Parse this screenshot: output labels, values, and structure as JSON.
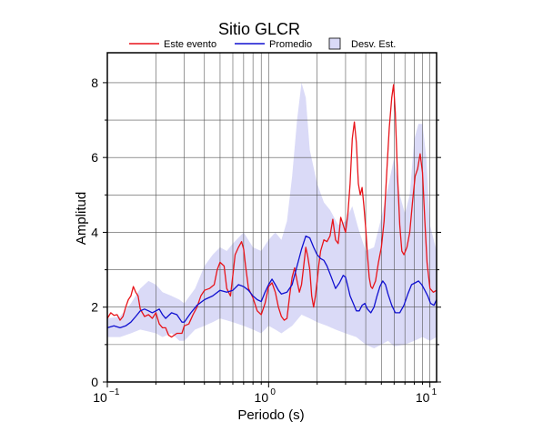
{
  "chart_data": {
    "type": "line",
    "title": "Sitio GLCR",
    "xlabel": "Periodo (s)",
    "ylabel": "Amplitud",
    "x_scale": "log",
    "xlim": [
      0.1,
      11
    ],
    "ylim": [
      0,
      8.8
    ],
    "x_ticks": [
      0.1,
      1,
      10
    ],
    "x_tick_labels": [
      {
        "base": "10",
        "exp": "−1"
      },
      {
        "base": "10",
        "exp": "0"
      },
      {
        "base": "10",
        "exp": "1"
      }
    ],
    "y_ticks": [
      0,
      2,
      4,
      6,
      8
    ],
    "y_tick_labels": [
      "0",
      "2",
      "4",
      "6",
      "8"
    ],
    "grid": true,
    "legend_position": "top",
    "legend": [
      "Este evento",
      "Promedio",
      "Desv. Est."
    ],
    "series": [
      {
        "name": "Este evento",
        "color": "#e8141a",
        "points": [
          [
            0.1,
            1.7
          ],
          [
            0.105,
            1.85
          ],
          [
            0.11,
            1.78
          ],
          [
            0.115,
            1.8
          ],
          [
            0.12,
            1.65
          ],
          [
            0.125,
            1.75
          ],
          [
            0.13,
            2.0
          ],
          [
            0.135,
            2.2
          ],
          [
            0.14,
            2.3
          ],
          [
            0.145,
            2.55
          ],
          [
            0.15,
            2.4
          ],
          [
            0.155,
            2.3
          ],
          [
            0.16,
            1.95
          ],
          [
            0.17,
            1.75
          ],
          [
            0.18,
            1.8
          ],
          [
            0.19,
            1.7
          ],
          [
            0.2,
            1.85
          ],
          [
            0.21,
            1.55
          ],
          [
            0.22,
            1.45
          ],
          [
            0.23,
            1.45
          ],
          [
            0.24,
            1.25
          ],
          [
            0.25,
            1.2
          ],
          [
            0.27,
            1.3
          ],
          [
            0.29,
            1.3
          ],
          [
            0.3,
            1.5
          ],
          [
            0.32,
            1.55
          ],
          [
            0.34,
            1.8
          ],
          [
            0.36,
            2.0
          ],
          [
            0.38,
            2.3
          ],
          [
            0.4,
            2.45
          ],
          [
            0.43,
            2.5
          ],
          [
            0.46,
            2.6
          ],
          [
            0.48,
            3.0
          ],
          [
            0.5,
            3.2
          ],
          [
            0.53,
            3.1
          ],
          [
            0.55,
            2.5
          ],
          [
            0.58,
            2.3
          ],
          [
            0.6,
            2.85
          ],
          [
            0.62,
            3.4
          ],
          [
            0.65,
            3.6
          ],
          [
            0.68,
            3.75
          ],
          [
            0.7,
            3.55
          ],
          [
            0.72,
            3.1
          ],
          [
            0.75,
            2.5
          ],
          [
            0.8,
            2.25
          ],
          [
            0.85,
            1.9
          ],
          [
            0.9,
            1.8
          ],
          [
            0.95,
            2.1
          ],
          [
            1.0,
            2.55
          ],
          [
            1.05,
            2.65
          ],
          [
            1.1,
            2.4
          ],
          [
            1.15,
            2.0
          ],
          [
            1.2,
            1.75
          ],
          [
            1.25,
            1.65
          ],
          [
            1.3,
            1.7
          ],
          [
            1.35,
            2.3
          ],
          [
            1.4,
            2.8
          ],
          [
            1.45,
            3.05
          ],
          [
            1.5,
            2.7
          ],
          [
            1.55,
            2.4
          ],
          [
            1.6,
            2.6
          ],
          [
            1.65,
            3.1
          ],
          [
            1.7,
            3.6
          ],
          [
            1.75,
            3.35
          ],
          [
            1.8,
            3.0
          ],
          [
            1.85,
            2.3
          ],
          [
            1.9,
            2.0
          ],
          [
            1.95,
            2.3
          ],
          [
            2.0,
            2.7
          ],
          [
            2.05,
            3.15
          ],
          [
            2.1,
            3.5
          ],
          [
            2.2,
            3.8
          ],
          [
            2.3,
            3.75
          ],
          [
            2.4,
            3.9
          ],
          [
            2.5,
            4.35
          ],
          [
            2.6,
            3.8
          ],
          [
            2.7,
            3.7
          ],
          [
            2.8,
            4.4
          ],
          [
            2.9,
            4.2
          ],
          [
            3.0,
            4.0
          ],
          [
            3.1,
            4.5
          ],
          [
            3.2,
            5.3
          ],
          [
            3.3,
            6.5
          ],
          [
            3.4,
            6.95
          ],
          [
            3.5,
            6.4
          ],
          [
            3.6,
            5.3
          ],
          [
            3.7,
            5.0
          ],
          [
            3.8,
            5.2
          ],
          [
            3.9,
            4.7
          ],
          [
            4.0,
            4.1
          ],
          [
            4.1,
            3.4
          ],
          [
            4.2,
            2.8
          ],
          [
            4.3,
            2.55
          ],
          [
            4.4,
            2.5
          ],
          [
            4.6,
            2.7
          ],
          [
            4.8,
            3.2
          ],
          [
            5.0,
            3.6
          ],
          [
            5.2,
            4.3
          ],
          [
            5.4,
            5.6
          ],
          [
            5.6,
            6.8
          ],
          [
            5.8,
            7.6
          ],
          [
            5.95,
            7.95
          ],
          [
            6.1,
            7.2
          ],
          [
            6.3,
            5.5
          ],
          [
            6.5,
            4.2
          ],
          [
            6.7,
            3.5
          ],
          [
            6.9,
            3.4
          ],
          [
            7.2,
            3.6
          ],
          [
            7.5,
            4.0
          ],
          [
            7.8,
            4.8
          ],
          [
            8.1,
            5.5
          ],
          [
            8.4,
            5.7
          ],
          [
            8.7,
            6.1
          ],
          [
            9.0,
            5.6
          ],
          [
            9.3,
            4.3
          ],
          [
            9.6,
            3.2
          ],
          [
            10.0,
            2.5
          ],
          [
            10.5,
            2.4
          ],
          [
            11.0,
            2.45
          ]
        ]
      },
      {
        "name": "Promedio",
        "color": "#1010d0",
        "points": [
          [
            0.1,
            1.45
          ],
          [
            0.11,
            1.5
          ],
          [
            0.12,
            1.45
          ],
          [
            0.13,
            1.5
          ],
          [
            0.14,
            1.6
          ],
          [
            0.15,
            1.75
          ],
          [
            0.16,
            1.9
          ],
          [
            0.17,
            1.95
          ],
          [
            0.18,
            1.9
          ],
          [
            0.19,
            1.85
          ],
          [
            0.2,
            1.9
          ],
          [
            0.21,
            1.95
          ],
          [
            0.22,
            1.8
          ],
          [
            0.23,
            1.7
          ],
          [
            0.25,
            1.85
          ],
          [
            0.27,
            1.8
          ],
          [
            0.29,
            1.6
          ],
          [
            0.3,
            1.6
          ],
          [
            0.33,
            1.85
          ],
          [
            0.36,
            2.05
          ],
          [
            0.4,
            2.2
          ],
          [
            0.45,
            2.3
          ],
          [
            0.5,
            2.45
          ],
          [
            0.55,
            2.4
          ],
          [
            0.6,
            2.45
          ],
          [
            0.65,
            2.6
          ],
          [
            0.7,
            2.55
          ],
          [
            0.75,
            2.45
          ],
          [
            0.8,
            2.3
          ],
          [
            0.85,
            2.2
          ],
          [
            0.9,
            2.15
          ],
          [
            0.95,
            2.4
          ],
          [
            1.0,
            2.6
          ],
          [
            1.05,
            2.75
          ],
          [
            1.1,
            2.6
          ],
          [
            1.15,
            2.45
          ],
          [
            1.2,
            2.35
          ],
          [
            1.3,
            2.4
          ],
          [
            1.4,
            2.6
          ],
          [
            1.5,
            3.1
          ],
          [
            1.6,
            3.55
          ],
          [
            1.7,
            3.9
          ],
          [
            1.8,
            3.85
          ],
          [
            1.9,
            3.6
          ],
          [
            2.0,
            3.4
          ],
          [
            2.1,
            3.3
          ],
          [
            2.2,
            3.25
          ],
          [
            2.3,
            3.1
          ],
          [
            2.45,
            2.8
          ],
          [
            2.6,
            2.5
          ],
          [
            2.75,
            2.65
          ],
          [
            2.9,
            2.85
          ],
          [
            3.0,
            2.8
          ],
          [
            3.1,
            2.55
          ],
          [
            3.2,
            2.3
          ],
          [
            3.35,
            2.1
          ],
          [
            3.5,
            1.9
          ],
          [
            3.65,
            1.9
          ],
          [
            3.8,
            2.05
          ],
          [
            3.95,
            2.1
          ],
          [
            4.1,
            1.95
          ],
          [
            4.3,
            1.85
          ],
          [
            4.5,
            2.0
          ],
          [
            4.7,
            2.3
          ],
          [
            4.9,
            2.55
          ],
          [
            5.1,
            2.7
          ],
          [
            5.3,
            2.6
          ],
          [
            5.5,
            2.35
          ],
          [
            5.8,
            2.05
          ],
          [
            6.1,
            1.85
          ],
          [
            6.5,
            1.85
          ],
          [
            6.9,
            2.05
          ],
          [
            7.3,
            2.35
          ],
          [
            7.7,
            2.6
          ],
          [
            8.1,
            2.65
          ],
          [
            8.5,
            2.7
          ],
          [
            8.9,
            2.6
          ],
          [
            9.3,
            2.45
          ],
          [
            9.7,
            2.3
          ],
          [
            10.1,
            2.1
          ],
          [
            10.6,
            2.05
          ],
          [
            11.0,
            2.2
          ]
        ]
      }
    ],
    "std_band": {
      "name": "Desv. Est.",
      "color": "#dadaf7",
      "upper": [
        [
          0.1,
          1.7
        ],
        [
          0.12,
          1.75
        ],
        [
          0.14,
          2.1
        ],
        [
          0.16,
          2.5
        ],
        [
          0.18,
          2.7
        ],
        [
          0.2,
          2.6
        ],
        [
          0.22,
          2.4
        ],
        [
          0.25,
          2.3
        ],
        [
          0.28,
          2.2
        ],
        [
          0.3,
          2.1
        ],
        [
          0.35,
          2.5
        ],
        [
          0.4,
          3.1
        ],
        [
          0.45,
          3.4
        ],
        [
          0.5,
          3.6
        ],
        [
          0.55,
          3.5
        ],
        [
          0.6,
          3.7
        ],
        [
          0.7,
          4.0
        ],
        [
          0.8,
          3.6
        ],
        [
          0.9,
          3.5
        ],
        [
          1.0,
          3.8
        ],
        [
          1.1,
          4.0
        ],
        [
          1.2,
          3.8
        ],
        [
          1.3,
          4.3
        ],
        [
          1.4,
          5.5
        ],
        [
          1.5,
          7.0
        ],
        [
          1.6,
          8.0
        ],
        [
          1.7,
          7.6
        ],
        [
          1.8,
          6.2
        ],
        [
          2.0,
          5.3
        ],
        [
          2.2,
          4.8
        ],
        [
          2.4,
          4.6
        ],
        [
          2.7,
          4.2
        ],
        [
          3.0,
          4.3
        ],
        [
          3.3,
          4.7
        ],
        [
          3.6,
          4.1
        ],
        [
          4.0,
          3.5
        ],
        [
          4.5,
          3.6
        ],
        [
          5.0,
          4.4
        ],
        [
          5.5,
          5.2
        ],
        [
          6.0,
          6.0
        ],
        [
          6.5,
          5.0
        ],
        [
          7.0,
          4.5
        ],
        [
          7.5,
          5.0
        ],
        [
          8.0,
          6.5
        ],
        [
          8.5,
          6.9
        ],
        [
          9.0,
          6.9
        ],
        [
          9.5,
          6.0
        ],
        [
          10.0,
          4.2
        ],
        [
          11.0,
          3.5
        ]
      ],
      "lower": [
        [
          0.1,
          1.2
        ],
        [
          0.12,
          1.2
        ],
        [
          0.14,
          1.3
        ],
        [
          0.16,
          1.4
        ],
        [
          0.18,
          1.35
        ],
        [
          0.2,
          1.3
        ],
        [
          0.22,
          1.2
        ],
        [
          0.25,
          1.3
        ],
        [
          0.28,
          1.1
        ],
        [
          0.3,
          1.1
        ],
        [
          0.35,
          1.4
        ],
        [
          0.4,
          1.5
        ],
        [
          0.45,
          1.6
        ],
        [
          0.5,
          1.7
        ],
        [
          0.6,
          1.6
        ],
        [
          0.7,
          1.5
        ],
        [
          0.8,
          1.4
        ],
        [
          0.9,
          1.3
        ],
        [
          1.0,
          1.5
        ],
        [
          1.1,
          1.4
        ],
        [
          1.2,
          1.3
        ],
        [
          1.4,
          1.5
        ],
        [
          1.6,
          1.8
        ],
        [
          1.8,
          1.7
        ],
        [
          2.0,
          1.6
        ],
        [
          2.3,
          1.5
        ],
        [
          2.6,
          1.4
        ],
        [
          3.0,
          1.3
        ],
        [
          3.5,
          1.2
        ],
        [
          4.0,
          1.0
        ],
        [
          4.5,
          0.9
        ],
        [
          5.0,
          1.0
        ],
        [
          5.5,
          1.1
        ],
        [
          6.0,
          0.95
        ],
        [
          7.0,
          1.0
        ],
        [
          8.0,
          1.1
        ],
        [
          9.0,
          1.2
        ],
        [
          10.0,
          1.1
        ],
        [
          11.0,
          1.2
        ]
      ]
    }
  }
}
